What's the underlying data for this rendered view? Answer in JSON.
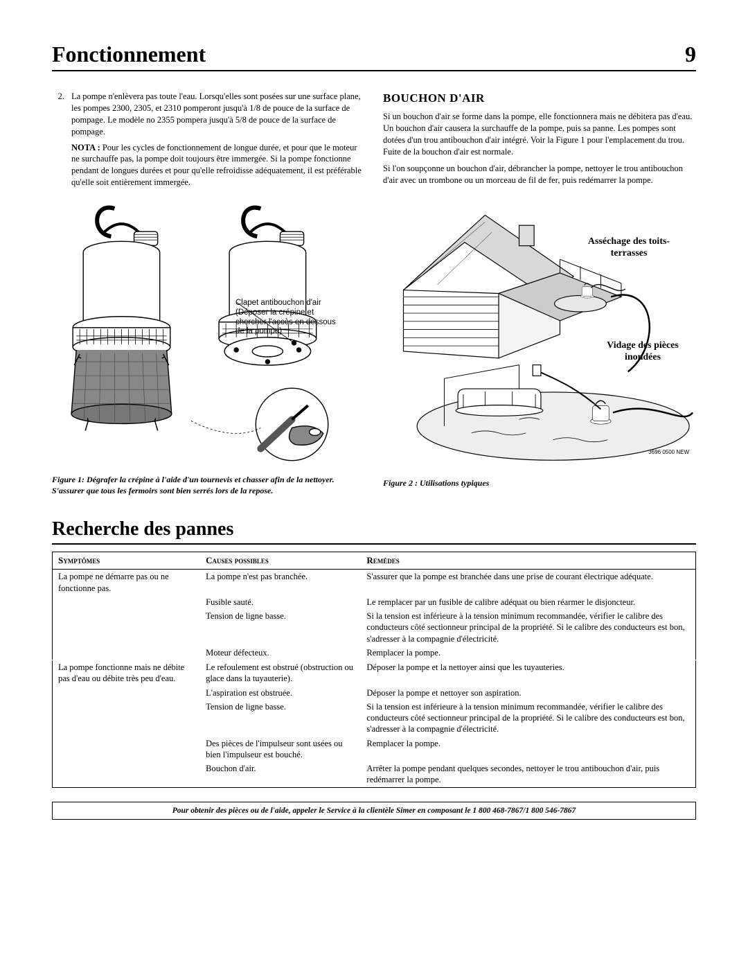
{
  "header": {
    "title": "Fonctionnement",
    "page": "9"
  },
  "leftcol": {
    "item2_num": "2.",
    "item2_text": "La pompe n'enlèvera pas toute l'eau. Lorsqu'elles sont posées sur une surface plane, les pompes 2300, 2305, et 2310 pomperont jusqu'à 1/8 de pouce de la surface de pompage. Le modèle no 2355 pompera jusqu'à 5/8 de pouce de la surface de pompage.",
    "nota_label": "NOTA :",
    "nota_text": " Pour les cycles de fonctionnement de longue durée, et pour que le moteur ne surchauffe pas, la pompe doit toujours être immergée. Si la pompe fonctionne pendant de longues durées et pour qu'elle refroidisse adéquatement, il est préférable qu'elle soit entièrement immergée.",
    "fig1_annot": "Clapet antibouchon d'air (Déposer la crépine et chercher l'accès en dessous de la pompe)",
    "fig1_caption": "Figure 1: Dégrafer la crépine à l'aide d'un tournevis et chasser afin de la nettoyer. S'assurer que tous les fermoirs sont bien serrés lors de la repose."
  },
  "rightcol": {
    "subhead": "BOUCHON D'AIR",
    "p1": "Si un bouchon d'air se forme dans la pompe, elle fonctionnera mais ne débitera pas d'eau. Un bouchon d'air causera la surchauffe de la pompe, puis sa panne. Les pompes sont dotées d'un trou antibouchon d'air intégré. Voir la Figure 1 pour l'emplacement du trou. Fuite de la bouchon d'air est normale.",
    "p2": "Si l'on soupçonne un bouchon d'air, débrancher la pompe, nettoyer le trou antibouchon d'air avec un trombone ou un morceau de fil de fer, puis redémarrer la pompe.",
    "fig2_label1": "Asséchage des toits-terrasses",
    "fig2_label2": "Vidage des pièces inondées",
    "fig2_code": "3696 0500 NEW",
    "fig2_caption": "Figure 2 :  Utilisations typiques"
  },
  "section2": "Recherche des pannes",
  "table": {
    "headers": [
      "Symptômes",
      "Causes possibles",
      "Remèdes"
    ],
    "rows": [
      {
        "s": "La pompe ne démarre pas ou ne fonctionne pas.",
        "c": "La pompe n'est pas branchée.",
        "r": "S'assurer que la pompe est branchée dans une prise de courant électrique adéquate."
      },
      {
        "s": "",
        "c": "Fusible sauté.",
        "r": "Le remplacer par un fusible de calibre adéquat ou bien réarmer le disjoncteur."
      },
      {
        "s": "",
        "c": "Tension de ligne basse.",
        "r": "Si la tension est inférieure à la tension minimum recommandée, vérifier le calibre des conducteurs côté sectionneur principal de la propriété. Si le calibre des conducteurs est bon, s'adresser à la compagnie d'électricité."
      },
      {
        "s": "",
        "c": "Moteur défecteux.",
        "r": "Remplacer la pompe."
      },
      {
        "s": "La pompe fonctionne mais ne débite pas d'eau ou débite très peu d'eau.",
        "c": "Le refoulement est obstrué (obstruction ou glace dans la tuyauterie).",
        "r": "Déposer la pompe et la nettoyer ainsi que les tuyauteries.",
        "sep": true
      },
      {
        "s": "",
        "c": "L'aspiration est obstruée.",
        "r": "Déposer la pompe et nettoyer son aspiration."
      },
      {
        "s": "",
        "c": "Tension de ligne basse.",
        "r": "Si la tension est inférieure à la tension minimum recommandée, vérifier le calibre des conducteurs côté sectionneur principal de la propriété. Si le calibre des conducteurs est bon, s'adresser à la compagnie d'électricité."
      },
      {
        "s": "",
        "c": "Des pièces de l'impulseur sont usées ou bien l'impulseur est bouché.",
        "r": "Remplacer la pompe."
      },
      {
        "s": "",
        "c": "Bouchon d'air.",
        "r": "Arrêter la pompe pendant quelques secondes, nettoyer le trou antibouchon d'air, puis redémarrer la pompe."
      }
    ]
  },
  "footer": "Pour obtenir des pièces ou de l'aide, appeler le Service à la clientèle Simer en composant le  1 800 468-7867/1 800 546-7867",
  "colors": {
    "stroke": "#000000",
    "fill_light": "#ffffff",
    "fill_grey": "#dcdcdc",
    "fill_dark": "#5a5a5a"
  }
}
